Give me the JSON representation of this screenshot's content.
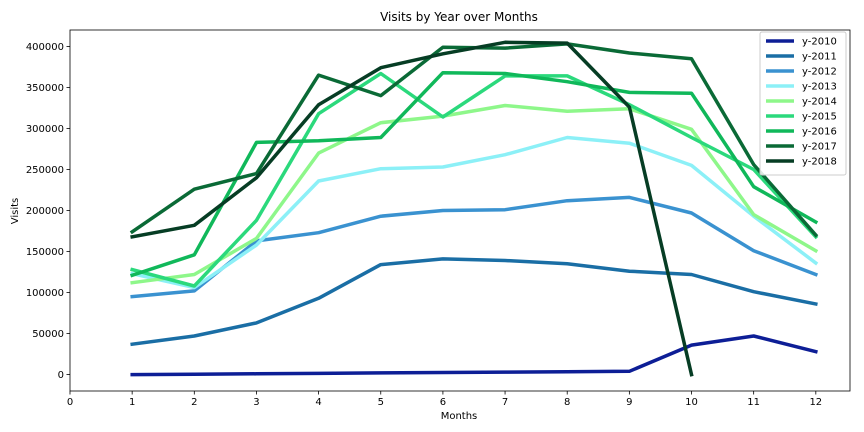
{
  "chart_data": {
    "type": "line",
    "title": "Visits by Year over Months",
    "xlabel": "Months",
    "ylabel": "Visits",
    "xlim": [
      0,
      12.55
    ],
    "ylim": [
      -20000,
      420000
    ],
    "x_ticks": [
      0,
      1,
      2,
      3,
      4,
      5,
      6,
      7,
      8,
      9,
      10,
      11,
      12
    ],
    "y_ticks": [
      0,
      50000,
      100000,
      150000,
      200000,
      250000,
      300000,
      350000,
      400000
    ],
    "grid": false,
    "legend_position": "top-right",
    "x": [
      1,
      2,
      3,
      4,
      5,
      6,
      7,
      8,
      9,
      10,
      11,
      12
    ],
    "series": [
      {
        "name": "y-2010",
        "color": "#0d1e96",
        "values": [
          0,
          500,
          1000,
          1500,
          2000,
          2500,
          3000,
          3500,
          4000,
          36000,
          47000,
          28000
        ]
      },
      {
        "name": "y-2011",
        "color": "#1a6ea5",
        "values": [
          37000,
          47000,
          63000,
          93000,
          134000,
          141000,
          139000,
          135000,
          126000,
          122000,
          101000,
          86000
        ]
      },
      {
        "name": "y-2012",
        "color": "#3a92d0",
        "values": [
          95000,
          102000,
          163000,
          173000,
          193000,
          200000,
          201000,
          212000,
          216000,
          197000,
          151000,
          122000
        ]
      },
      {
        "name": "y-2013",
        "color": "#8cf0f7",
        "values": [
          123000,
          106000,
          158000,
          236000,
          251000,
          253000,
          268000,
          289000,
          282000,
          255000,
          193000,
          136000
        ]
      },
      {
        "name": "y-2014",
        "color": "#8ef78a",
        "values": [
          112000,
          122000,
          166000,
          270000,
          307000,
          315000,
          328000,
          321000,
          324000,
          299000,
          195000,
          151000
        ]
      },
      {
        "name": "y-2015",
        "color": "#2bd97c",
        "values": [
          128000,
          108000,
          188000,
          318000,
          367000,
          314000,
          364000,
          364000,
          329000,
          289000,
          250000,
          168000
        ]
      },
      {
        "name": "y-2016",
        "color": "#10b85a",
        "values": [
          121000,
          146000,
          283000,
          285000,
          289000,
          368000,
          367000,
          357000,
          344000,
          343000,
          229000,
          186000
        ]
      },
      {
        "name": "y-2017",
        "color": "#0a6a36",
        "values": [
          174000,
          226000,
          245000,
          365000,
          340000,
          399000,
          398000,
          403000,
          392000,
          385000,
          256000,
          170000
        ]
      },
      {
        "name": "y-2018",
        "color": "#063d24",
        "values": [
          168000,
          182000,
          240000,
          329000,
          374000,
          391000,
          405000,
          404000,
          326000,
          0,
          null,
          null
        ]
      }
    ]
  }
}
